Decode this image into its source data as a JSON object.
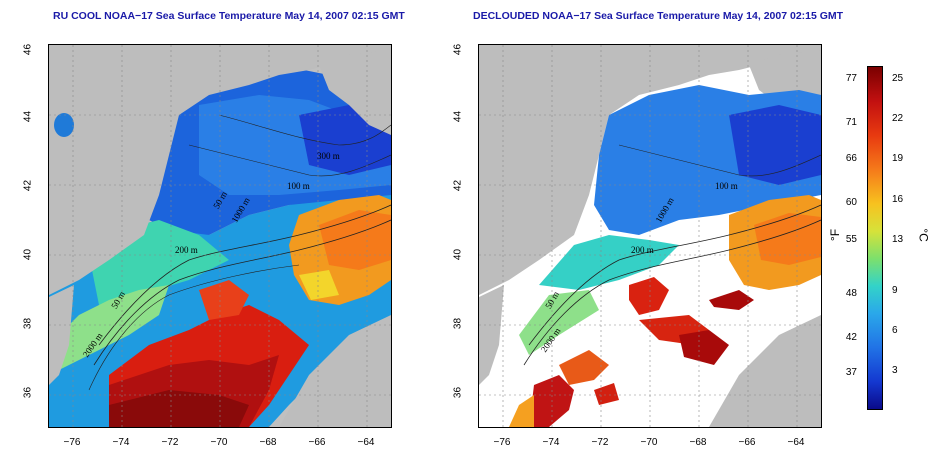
{
  "left_panel": {
    "title": "RU COOL NOAA−17 Sea Surface Temperature May 14, 2007 02:15 GMT",
    "contour_labels": [
      "300 m",
      "100 m",
      "200 m",
      "50 m",
      "1000 m",
      "2000 m",
      "50 m"
    ]
  },
  "right_panel": {
    "title": "DECLOUDED NOAA−17 Sea Surface Temperature May 14, 2007 02:15 GMT",
    "contour_labels": [
      "100 m",
      "1000 m",
      "200 m",
      "50 m",
      "2000 m"
    ]
  },
  "axes": {
    "y_ticks": [
      "46",
      "44",
      "42",
      "40",
      "38",
      "36"
    ],
    "x_ticks": [
      "−76",
      "−74",
      "−72",
      "−70",
      "−68",
      "−66",
      "−64"
    ]
  },
  "colorbar": {
    "fahrenheit_ticks": [
      "77",
      "71",
      "66",
      "60",
      "55",
      "48",
      "42",
      "37"
    ],
    "celsius_ticks": [
      "25",
      "22",
      "19",
      "16",
      "13",
      "9",
      "6",
      "3"
    ],
    "fahrenheit_unit": "°F",
    "celsius_unit": "°C"
  }
}
